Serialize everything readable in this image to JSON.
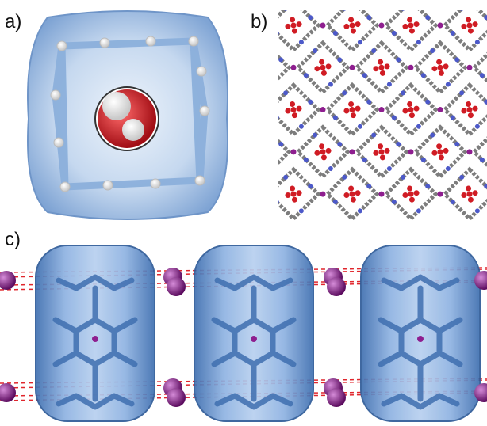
{
  "labels": {
    "a": "a)",
    "b": "b)",
    "c": "c)"
  },
  "colors": {
    "surface": "#a9c4e6",
    "surface_edge": "#6f95c8",
    "framework": "#89aedb",
    "oxygen": "#d01c24",
    "hydrogen": "#f2f2f2",
    "carbon": "#7d7d7d",
    "nitrogen": "#4c59c9",
    "metal": "#8e1e8f",
    "contact_line": "#e0262c"
  },
  "icons": {
    "cage_view": "molecular-cage-with-water",
    "packing": "crystal-lattice-packing",
    "chain": "cage-chain-with-metal-ions"
  }
}
